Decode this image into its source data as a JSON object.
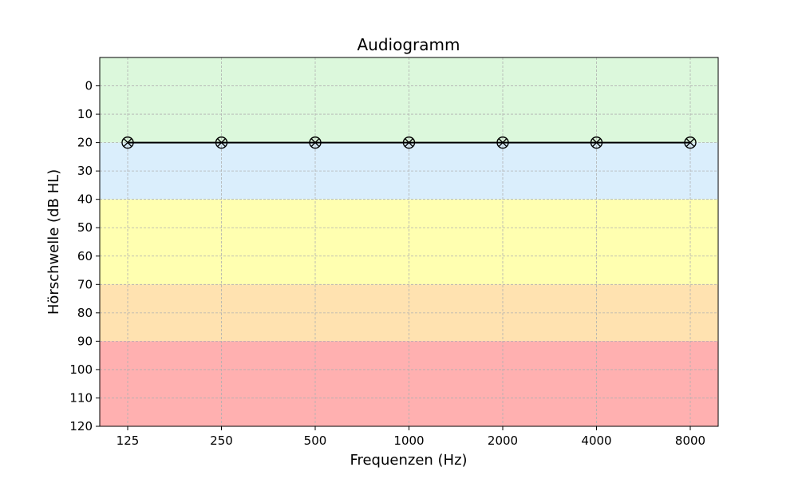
{
  "chart_data": {
    "type": "line",
    "title": "Audiogramm",
    "xlabel": "Frequenzen (Hz)",
    "ylabel": "Hörschwelle (dB HL)",
    "categories": [
      "125",
      "250",
      "500",
      "1000",
      "2000",
      "4000",
      "8000"
    ],
    "x_scale": "log2",
    "y_inverted": true,
    "ylim": [
      -10,
      120
    ],
    "yticks": [
      0,
      10,
      20,
      30,
      40,
      50,
      60,
      70,
      80,
      90,
      100,
      110,
      120
    ],
    "grid": true,
    "bands": [
      {
        "from": -10,
        "to": 20,
        "color": "#dcf8dc"
      },
      {
        "from": 20,
        "to": 40,
        "color": "#daeefc"
      },
      {
        "from": 40,
        "to": 70,
        "color": "#ffffb0"
      },
      {
        "from": 70,
        "to": 90,
        "color": "#ffe2b0"
      },
      {
        "from": 90,
        "to": 120,
        "color": "#ffb0b0"
      }
    ],
    "series": [
      {
        "values": [
          20,
          20,
          20,
          20,
          20,
          20,
          20
        ],
        "color": "#000000",
        "marker": "circle-x-icon"
      }
    ]
  }
}
